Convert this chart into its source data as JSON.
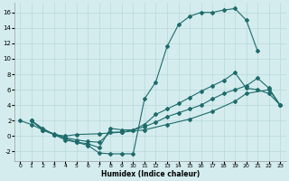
{
  "xlabel": "Humidex (Indice chaleur)",
  "bg_color": "#d4ecee",
  "grid_color": "#b8d8da",
  "line_color": "#1e6b6b",
  "xlim": [
    -0.5,
    23.5
  ],
  "ylim": [
    -3.2,
    17.2
  ],
  "xticks": [
    0,
    1,
    2,
    3,
    4,
    5,
    6,
    7,
    8,
    9,
    10,
    11,
    12,
    13,
    14,
    15,
    16,
    17,
    18,
    19,
    20,
    21,
    22,
    23
  ],
  "yticks": [
    -2,
    0,
    2,
    4,
    6,
    8,
    10,
    12,
    14,
    16
  ],
  "line1_x": [
    1,
    2,
    3,
    4,
    5,
    6,
    7,
    8,
    9,
    10,
    11,
    12,
    13,
    14,
    15,
    16,
    17,
    18,
    19,
    20,
    21
  ],
  "line1_y": [
    2,
    1.0,
    0.2,
    -0.3,
    -0.8,
    -1.2,
    -2.2,
    -2.3,
    -2.3,
    -2.3,
    4.8,
    7.0,
    11.6,
    14.4,
    15.5,
    16.0,
    16.0,
    16.3,
    16.5,
    15.0,
    11.0
  ],
  "line2_x": [
    1,
    2,
    3,
    4,
    5,
    6,
    7,
    8,
    9,
    10,
    11,
    12,
    13,
    14,
    15,
    16,
    17,
    18,
    19,
    20,
    21,
    22,
    23
  ],
  "line2_y": [
    2,
    0.8,
    0.2,
    -0.5,
    -0.8,
    -1.0,
    -1.5,
    1.0,
    0.8,
    0.8,
    1.5,
    2.8,
    3.5,
    4.2,
    5.0,
    5.8,
    6.5,
    7.2,
    8.2,
    6.2,
    6.0,
    5.5,
    4.0
  ],
  "line3_x": [
    1,
    2,
    3,
    4,
    5,
    7,
    9,
    11,
    13,
    15,
    17,
    19,
    20,
    22,
    23
  ],
  "line3_y": [
    2,
    0.8,
    0.2,
    0.0,
    0.2,
    0.3,
    0.5,
    0.8,
    1.5,
    2.2,
    3.2,
    4.5,
    5.5,
    6.0,
    4.0
  ],
  "line4_x": [
    0,
    1,
    2,
    3,
    4,
    5,
    6,
    7,
    8,
    9,
    10,
    11,
    12,
    13,
    14,
    15,
    16,
    17,
    18,
    19,
    20,
    21,
    22,
    23
  ],
  "line4_y": [
    2,
    1.5,
    0.8,
    0.3,
    -0.2,
    -0.5,
    -0.7,
    -0.8,
    0.5,
    0.5,
    0.8,
    1.2,
    1.8,
    2.5,
    3.0,
    3.5,
    4.0,
    4.8,
    5.5,
    6.0,
    6.5,
    7.5,
    6.2,
    4.0
  ]
}
